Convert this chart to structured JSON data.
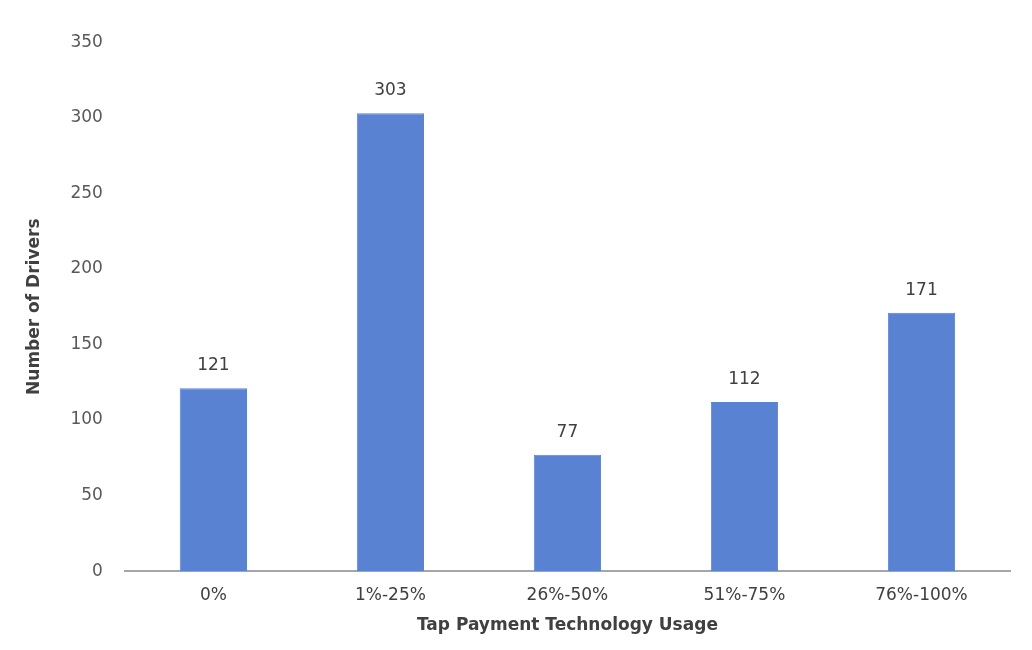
{
  "chart_data": {
    "type": "bar",
    "xlabel": "Tap Payment Technology Usage",
    "ylabel": "Number of Drivers",
    "categories": [
      "0%",
      "1%-25%",
      "26%-50%",
      "51%-75%",
      "76%-100%"
    ],
    "values": [
      121,
      303,
      77,
      112,
      171
    ],
    "color": "#5a82d2",
    "ylim": [
      0,
      350
    ],
    "yticks": [
      0,
      50,
      100,
      150,
      200,
      250,
      300,
      350
    ],
    "grid": false,
    "legend": false,
    "data_labels": true
  }
}
